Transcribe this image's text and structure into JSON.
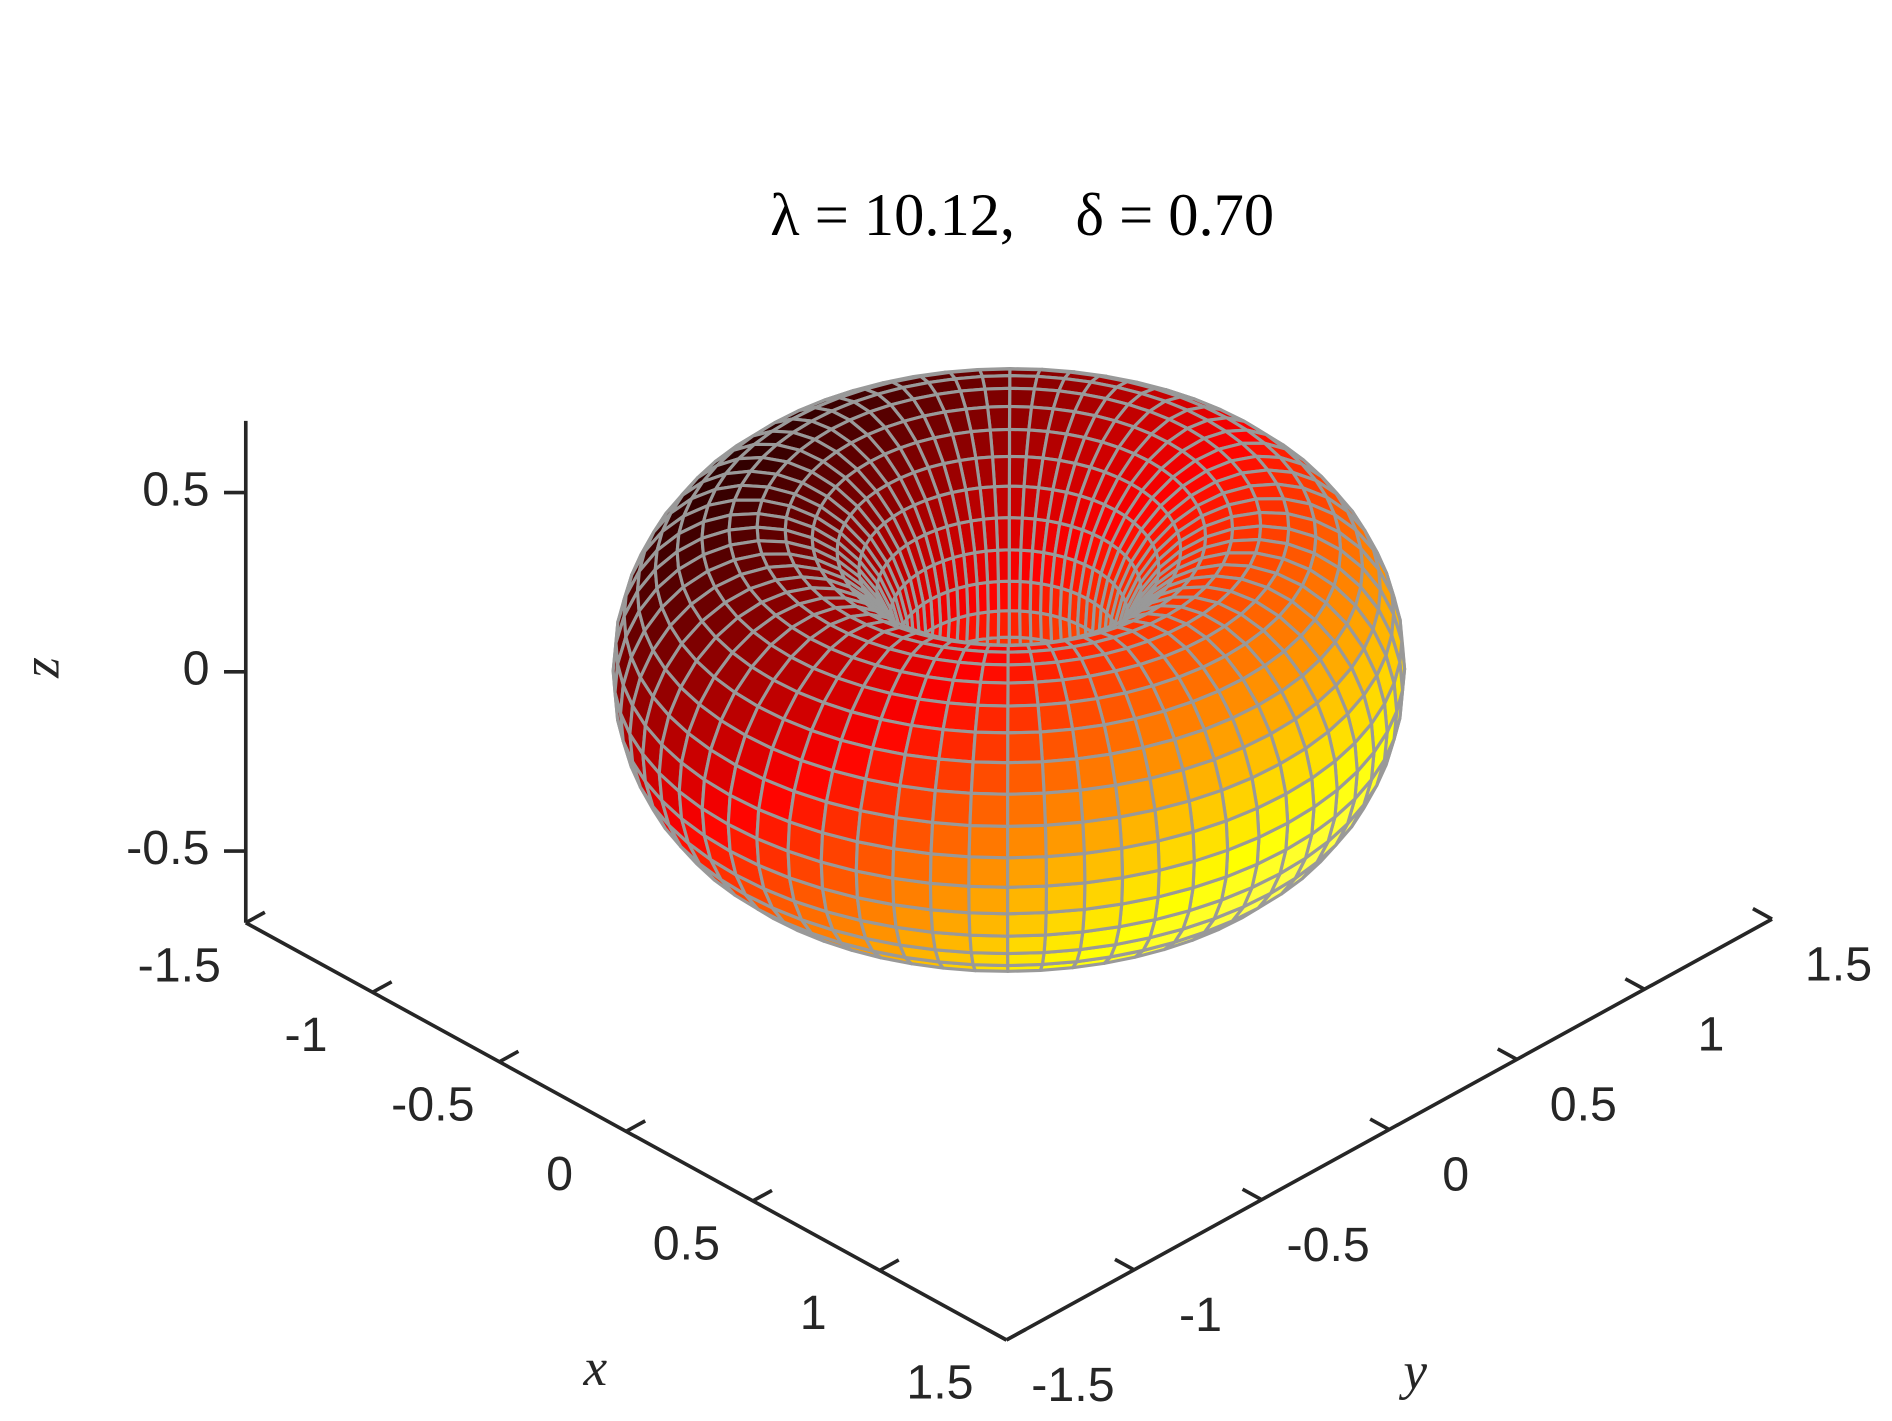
{
  "chart_data": {
    "type": "surface",
    "title": "λ = 10.12,    δ = 0.70",
    "xlabel": "x",
    "ylabel": "y",
    "zlabel": "z",
    "xlim": [
      -1.5,
      1.5
    ],
    "xticks": [
      -1.5,
      -1,
      -0.5,
      0,
      0.5,
      1,
      1.5
    ],
    "ylim": [
      -1.5,
      1.5
    ],
    "yticks": [
      -1.5,
      -1,
      -0.5,
      0,
      0.5,
      1,
      1.5
    ],
    "zlim": [
      -0.7,
      0.7
    ],
    "zticks": [
      -0.5,
      0,
      0.5
    ],
    "colormap": "hot",
    "edge_color": "#999999"
  }
}
